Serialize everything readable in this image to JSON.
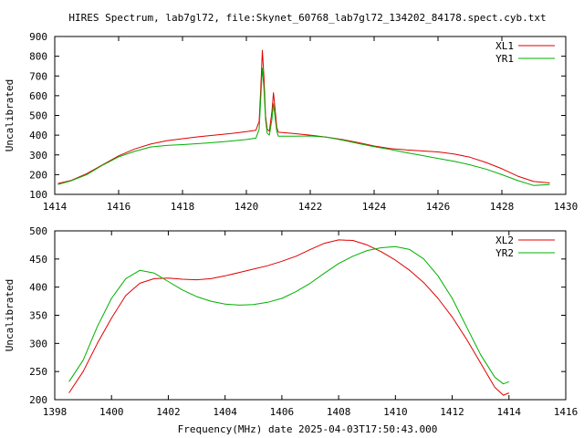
{
  "title": "HIRES Spectrum, lab7gl72, file:Skynet_60768_lab7gl72_134202_84178.spect.cyb.txt",
  "xlabel": "Frequency(MHz) date 2025-04-03T17:50:43.000",
  "chart_data": [
    {
      "type": "line",
      "ylabel": "Uncalibrated",
      "xlim": [
        1414,
        1430
      ],
      "ylim": [
        100,
        900
      ],
      "xticks": [
        1414,
        1416,
        1418,
        1420,
        1422,
        1424,
        1426,
        1428,
        1430
      ],
      "yticks": [
        100,
        200,
        300,
        400,
        500,
        600,
        700,
        800,
        900
      ],
      "legend_position": "top-right",
      "series": [
        {
          "name": "XL1",
          "color": "#e00000",
          "points": [
            [
              1414.1,
              155
            ],
            [
              1414.5,
              170
            ],
            [
              1415,
              205
            ],
            [
              1415.5,
              250
            ],
            [
              1416,
              295
            ],
            [
              1416.5,
              330
            ],
            [
              1417,
              355
            ],
            [
              1417.5,
              372
            ],
            [
              1418,
              382
            ],
            [
              1418.5,
              392
            ],
            [
              1419,
              400
            ],
            [
              1419.5,
              408
            ],
            [
              1420,
              418
            ],
            [
              1420.3,
              425
            ],
            [
              1420.4,
              470
            ],
            [
              1420.45,
              640
            ],
            [
              1420.5,
              830
            ],
            [
              1420.55,
              700
            ],
            [
              1420.6,
              500
            ],
            [
              1420.65,
              430
            ],
            [
              1420.72,
              420
            ],
            [
              1420.8,
              520
            ],
            [
              1420.85,
              615
            ],
            [
              1420.9,
              530
            ],
            [
              1420.95,
              440
            ],
            [
              1421,
              415
            ],
            [
              1421.5,
              408
            ],
            [
              1422,
              400
            ],
            [
              1422.5,
              390
            ],
            [
              1423,
              378
            ],
            [
              1423.5,
              362
            ],
            [
              1424,
              345
            ],
            [
              1424.5,
              332
            ],
            [
              1425,
              325
            ],
            [
              1425.5,
              320
            ],
            [
              1426,
              315
            ],
            [
              1426.5,
              305
            ],
            [
              1427,
              288
            ],
            [
              1427.5,
              262
            ],
            [
              1428,
              230
            ],
            [
              1428.5,
              192
            ],
            [
              1429,
              165
            ],
            [
              1429.5,
              158
            ]
          ]
        },
        {
          "name": "YR1",
          "color": "#00b000",
          "points": [
            [
              1414.1,
              150
            ],
            [
              1414.5,
              168
            ],
            [
              1415,
              200
            ],
            [
              1415.5,
              248
            ],
            [
              1416,
              290
            ],
            [
              1416.5,
              318
            ],
            [
              1417,
              340
            ],
            [
              1417.5,
              348
            ],
            [
              1418,
              352
            ],
            [
              1418.5,
              357
            ],
            [
              1419,
              363
            ],
            [
              1419.5,
              370
            ],
            [
              1420,
              378
            ],
            [
              1420.3,
              385
            ],
            [
              1420.4,
              430
            ],
            [
              1420.45,
              590
            ],
            [
              1420.5,
              740
            ],
            [
              1420.55,
              640
            ],
            [
              1420.6,
              480
            ],
            [
              1420.65,
              410
            ],
            [
              1420.72,
              400
            ],
            [
              1420.8,
              480
            ],
            [
              1420.85,
              560
            ],
            [
              1420.9,
              490
            ],
            [
              1420.95,
              420
            ],
            [
              1421,
              395
            ],
            [
              1421.5,
              395
            ],
            [
              1422,
              396
            ],
            [
              1422.5,
              390
            ],
            [
              1423,
              375
            ],
            [
              1423.5,
              358
            ],
            [
              1424,
              342
            ],
            [
              1424.5,
              328
            ],
            [
              1425,
              312
            ],
            [
              1425.5,
              297
            ],
            [
              1426,
              282
            ],
            [
              1426.5,
              268
            ],
            [
              1427,
              250
            ],
            [
              1427.5,
              228
            ],
            [
              1428,
              200
            ],
            [
              1428.5,
              170
            ],
            [
              1429,
              145
            ],
            [
              1429.5,
              150
            ]
          ]
        }
      ]
    },
    {
      "type": "line",
      "ylabel": "Uncalibrated",
      "xlim": [
        1398,
        1416
      ],
      "ylim": [
        200,
        500
      ],
      "xticks": [
        1398,
        1400,
        1402,
        1404,
        1406,
        1408,
        1410,
        1412,
        1414,
        1416
      ],
      "yticks": [
        200,
        250,
        300,
        350,
        400,
        450,
        500
      ],
      "legend_position": "top-right",
      "series": [
        {
          "name": "XL2",
          "color": "#e00000",
          "points": [
            [
              1398.5,
              212
            ],
            [
              1399,
              250
            ],
            [
              1399.5,
              300
            ],
            [
              1400,
              345
            ],
            [
              1400.5,
              385
            ],
            [
              1401,
              407
            ],
            [
              1401.5,
              415
            ],
            [
              1402,
              416
            ],
            [
              1402.5,
              414
            ],
            [
              1403,
              413
            ],
            [
              1403.5,
              415
            ],
            [
              1404,
              420
            ],
            [
              1404.5,
              426
            ],
            [
              1405,
              432
            ],
            [
              1405.5,
              438
            ],
            [
              1406,
              446
            ],
            [
              1406.5,
              455
            ],
            [
              1407,
              467
            ],
            [
              1407.5,
              478
            ],
            [
              1408,
              484
            ],
            [
              1408.5,
              483
            ],
            [
              1409,
              475
            ],
            [
              1409.5,
              463
            ],
            [
              1410,
              448
            ],
            [
              1410.5,
              430
            ],
            [
              1411,
              408
            ],
            [
              1411.5,
              380
            ],
            [
              1412,
              347
            ],
            [
              1412.5,
              308
            ],
            [
              1413,
              265
            ],
            [
              1413.5,
              222
            ],
            [
              1413.8,
              208
            ],
            [
              1414,
              212
            ]
          ]
        },
        {
          "name": "YR2",
          "color": "#00b000",
          "points": [
            [
              1398.5,
              232
            ],
            [
              1399,
              270
            ],
            [
              1399.5,
              330
            ],
            [
              1400,
              380
            ],
            [
              1400.5,
              415
            ],
            [
              1401,
              430
            ],
            [
              1401.5,
              425
            ],
            [
              1402,
              410
            ],
            [
              1402.5,
              395
            ],
            [
              1403,
              383
            ],
            [
              1403.5,
              375
            ],
            [
              1404,
              370
            ],
            [
              1404.5,
              368
            ],
            [
              1405,
              369
            ],
            [
              1405.5,
              373
            ],
            [
              1406,
              380
            ],
            [
              1406.5,
              392
            ],
            [
              1407,
              407
            ],
            [
              1407.5,
              425
            ],
            [
              1408,
              442
            ],
            [
              1408.5,
              455
            ],
            [
              1409,
              465
            ],
            [
              1409.5,
              470
            ],
            [
              1410,
              472
            ],
            [
              1410.5,
              467
            ],
            [
              1411,
              450
            ],
            [
              1411.5,
              420
            ],
            [
              1412,
              380
            ],
            [
              1412.5,
              330
            ],
            [
              1413,
              280
            ],
            [
              1413.5,
              240
            ],
            [
              1413.8,
              228
            ],
            [
              1414,
              232
            ]
          ]
        }
      ]
    }
  ]
}
